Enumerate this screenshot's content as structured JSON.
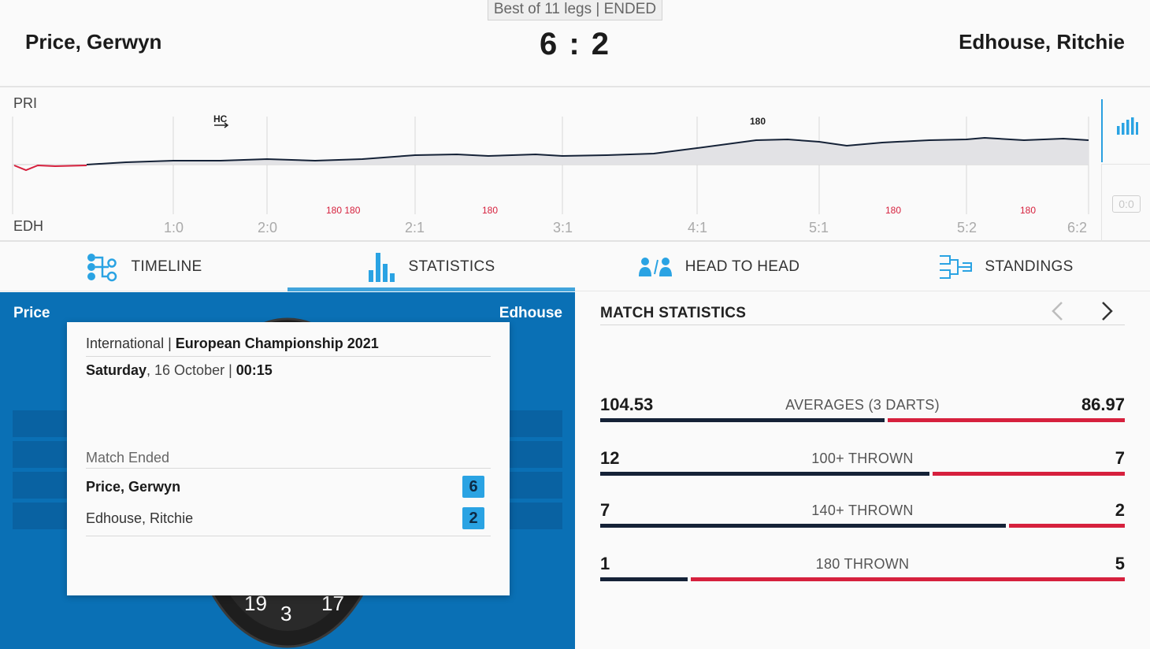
{
  "header": {
    "format": "Best of 11 legs | ENDED",
    "player_left": "Price, Gerwyn",
    "player_right": "Edhouse, Ritchie",
    "score": "6 : 2"
  },
  "timeline_chart": {
    "top_label": "PRI",
    "bottom_label": "EDH",
    "hc_label": "HC",
    "score_ticks": [
      "1:0",
      "2:0",
      "2:1",
      "3:1",
      "4:1",
      "5:1",
      "5:2",
      "6:2"
    ],
    "top_180_labels": [
      "180"
    ],
    "bottom_180_labels": [
      "180 180",
      "180",
      "180",
      "180"
    ],
    "zero_badge": "0:0"
  },
  "tabs": [
    {
      "label": "TIMELINE",
      "icon": "timeline-icon"
    },
    {
      "label": "STATISTICS",
      "icon": "statistics-icon",
      "active": true
    },
    {
      "label": "HEAD TO HEAD",
      "icon": "head-to-head-icon"
    },
    {
      "label": "STANDINGS",
      "icon": "standings-icon"
    }
  ],
  "board_panel": {
    "left_label": "Price",
    "right_label": "Edhouse",
    "board_numbers": [
      "19",
      "3",
      "17"
    ]
  },
  "popup": {
    "category": "International",
    "tournament": "European Championship 2021",
    "day": "Saturday",
    "date": ", 16 October | ",
    "time": "00:15",
    "status": "Match Ended",
    "player1": "Price, Gerwyn",
    "player1_score": "6",
    "player2": "Edhouse, Ritchie",
    "player2_score": "2",
    "separator": " | "
  },
  "match_statistics": {
    "title": "MATCH STATISTICS",
    "rows": [
      {
        "label": "AVERAGES (3 DARTS)",
        "left": "104.53",
        "right": "86.97",
        "left_share": 0.546
      },
      {
        "label": "100+ THROWN",
        "left": "12",
        "right": "7",
        "left_share": 0.632
      },
      {
        "label": "140+ THROWN",
        "left": "7",
        "right": "2",
        "left_share": 0.778
      },
      {
        "label": "180 THROWN",
        "left": "1",
        "right": "5",
        "left_share": 0.167
      }
    ]
  },
  "colors": {
    "accent_blue": "#2aa3e3",
    "panel_blue": "#0a70b5",
    "navy": "#152237",
    "red": "#d6203d"
  }
}
